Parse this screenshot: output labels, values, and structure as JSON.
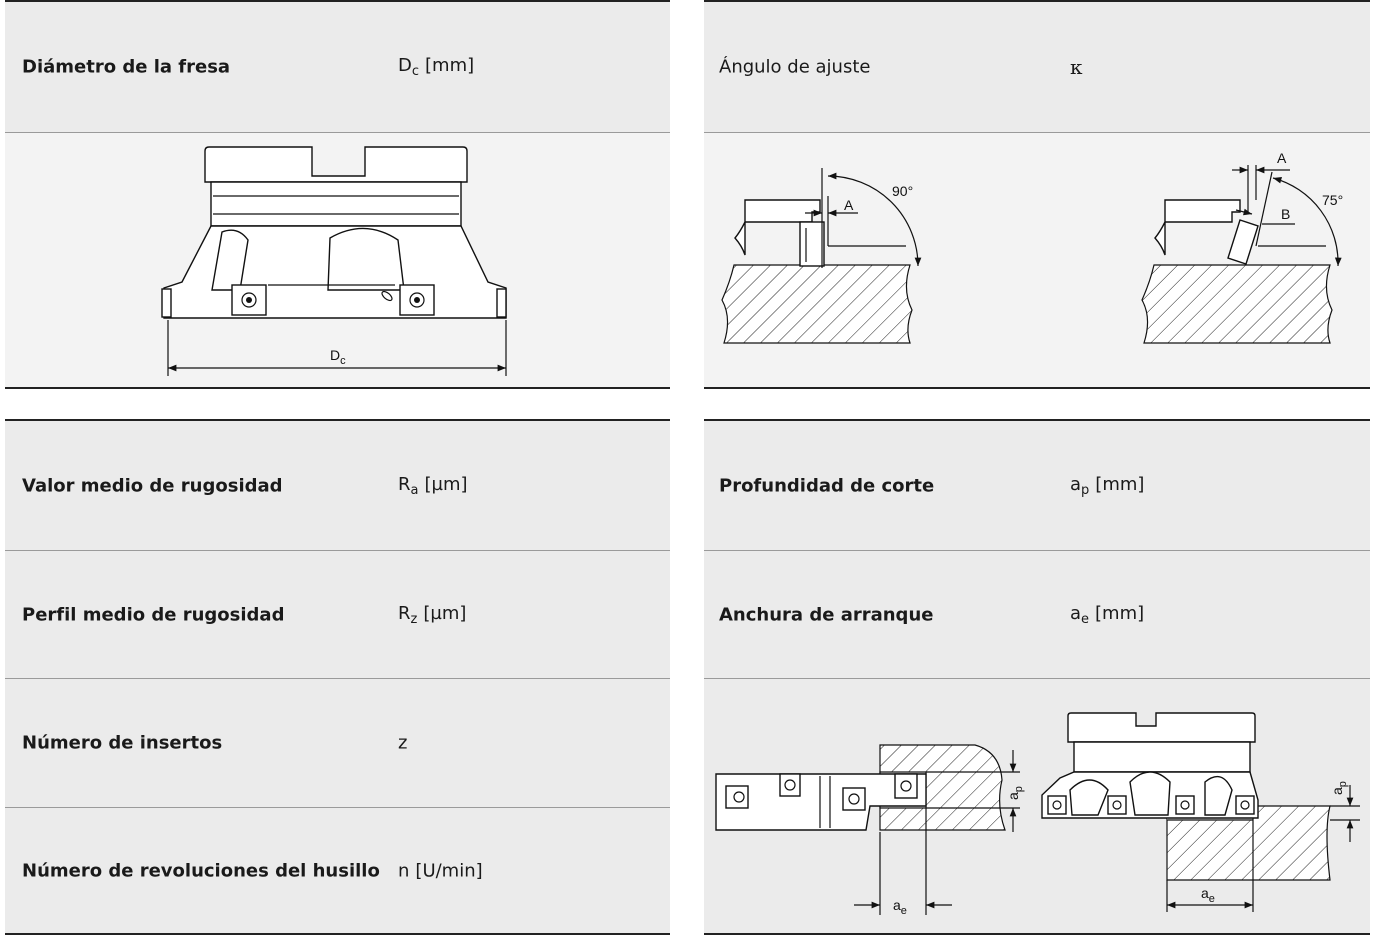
{
  "tables": [
    {
      "rows": [
        {
          "label": "Diámetro de la fresa",
          "symbol": {
            "base": "D",
            "sub": "c",
            "unit": "[mm]"
          }
        }
      ],
      "figure": {
        "labels": [
          {
            "base": "D",
            "sub": "c"
          }
        ]
      }
    },
    {
      "rows": [
        {
          "label": "Ángulo de ajuste",
          "symbol": {
            "base": "κ"
          }
        }
      ],
      "figure": {
        "labels": [
          {
            "base": "A"
          },
          {
            "base": "90°"
          },
          {
            "base": "A"
          },
          {
            "base": "B"
          },
          {
            "base": "75°"
          }
        ]
      }
    },
    {
      "rows": [
        {
          "label": "Valor medio de rugosidad",
          "symbol": {
            "base": "R",
            "sub": "a",
            "unit": "[µm]"
          }
        },
        {
          "label": "Perfil medio de rugosidad",
          "symbol": {
            "base": "R",
            "sub": "z",
            "unit": "[µm]"
          }
        },
        {
          "label": "Número de insertos",
          "symbol": {
            "base": "z"
          }
        },
        {
          "label": "Número de revoluciones del husillo",
          "symbol": {
            "base": "n",
            "unit": "[U/min]"
          }
        }
      ]
    },
    {
      "rows": [
        {
          "label": "Profundidad de corte",
          "symbol": {
            "base": "a",
            "sub": "p",
            "unit": "[mm]"
          }
        },
        {
          "label": "Anchura de arranque",
          "symbol": {
            "base": "a",
            "sub": "e",
            "unit": "[mm]"
          }
        }
      ],
      "figure": {
        "labels": [
          {
            "base": "a",
            "sub": "p"
          },
          {
            "base": "a",
            "sub": "e"
          },
          {
            "base": "a",
            "sub": "p"
          },
          {
            "base": "a",
            "sub": "e"
          }
        ]
      }
    }
  ]
}
